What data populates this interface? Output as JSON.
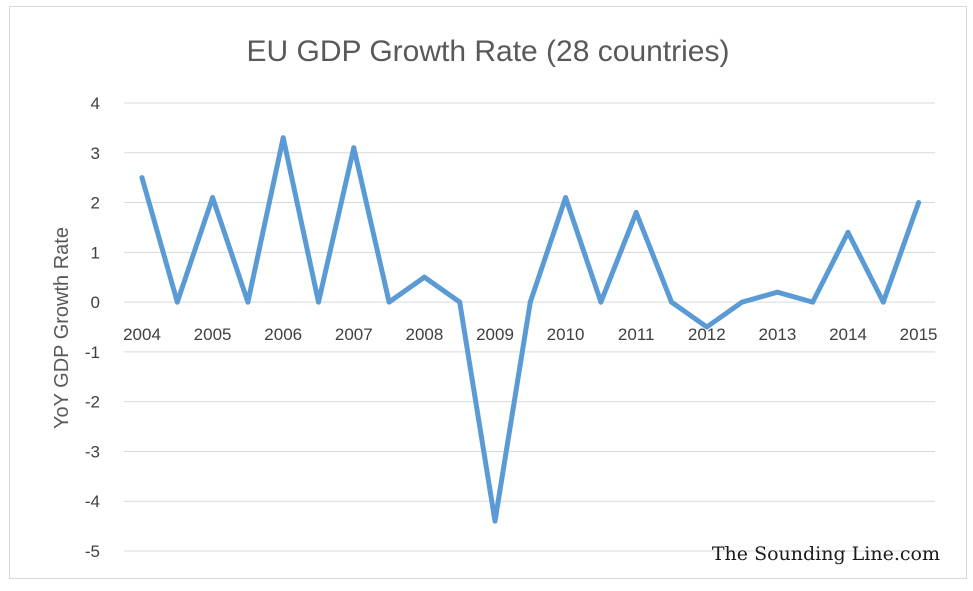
{
  "chart_data": {
    "type": "line",
    "title": "EU GDP Growth Rate (28 countries)",
    "xlabel": "",
    "ylabel": "YoY GDP Growth Rate",
    "ylim": [
      -5,
      4
    ],
    "yticks": [
      "4",
      "3",
      "2",
      "1",
      "0",
      "-1",
      "-2",
      "-3",
      "-4",
      "-5"
    ],
    "ytick_values": [
      4,
      3,
      2,
      1,
      0,
      -1,
      -2,
      -3,
      -4,
      -5
    ],
    "categories": [
      "2004",
      "2005",
      "2006",
      "2007",
      "2008",
      "2009",
      "2010",
      "2011",
      "2012",
      "2013",
      "2014",
      "2015"
    ],
    "grid": true,
    "series": [
      {
        "color": "#5b9bd5",
        "x": [
          0,
          0.5,
          1,
          1.5,
          2,
          2.5,
          3,
          3.5,
          4,
          4.5,
          5,
          5.5,
          6,
          6.5,
          7,
          7.5,
          8,
          8.5,
          9,
          9.5,
          10,
          10.5,
          11
        ],
        "values": [
          2.5,
          0,
          2.1,
          0,
          3.3,
          0,
          3.1,
          0,
          0.5,
          0,
          -4.4,
          0,
          2.1,
          0,
          1.8,
          0,
          -0.5,
          0,
          0.2,
          0,
          1.4,
          0,
          2.0
        ]
      }
    ]
  },
  "watermark": "The Sounding Line.com"
}
